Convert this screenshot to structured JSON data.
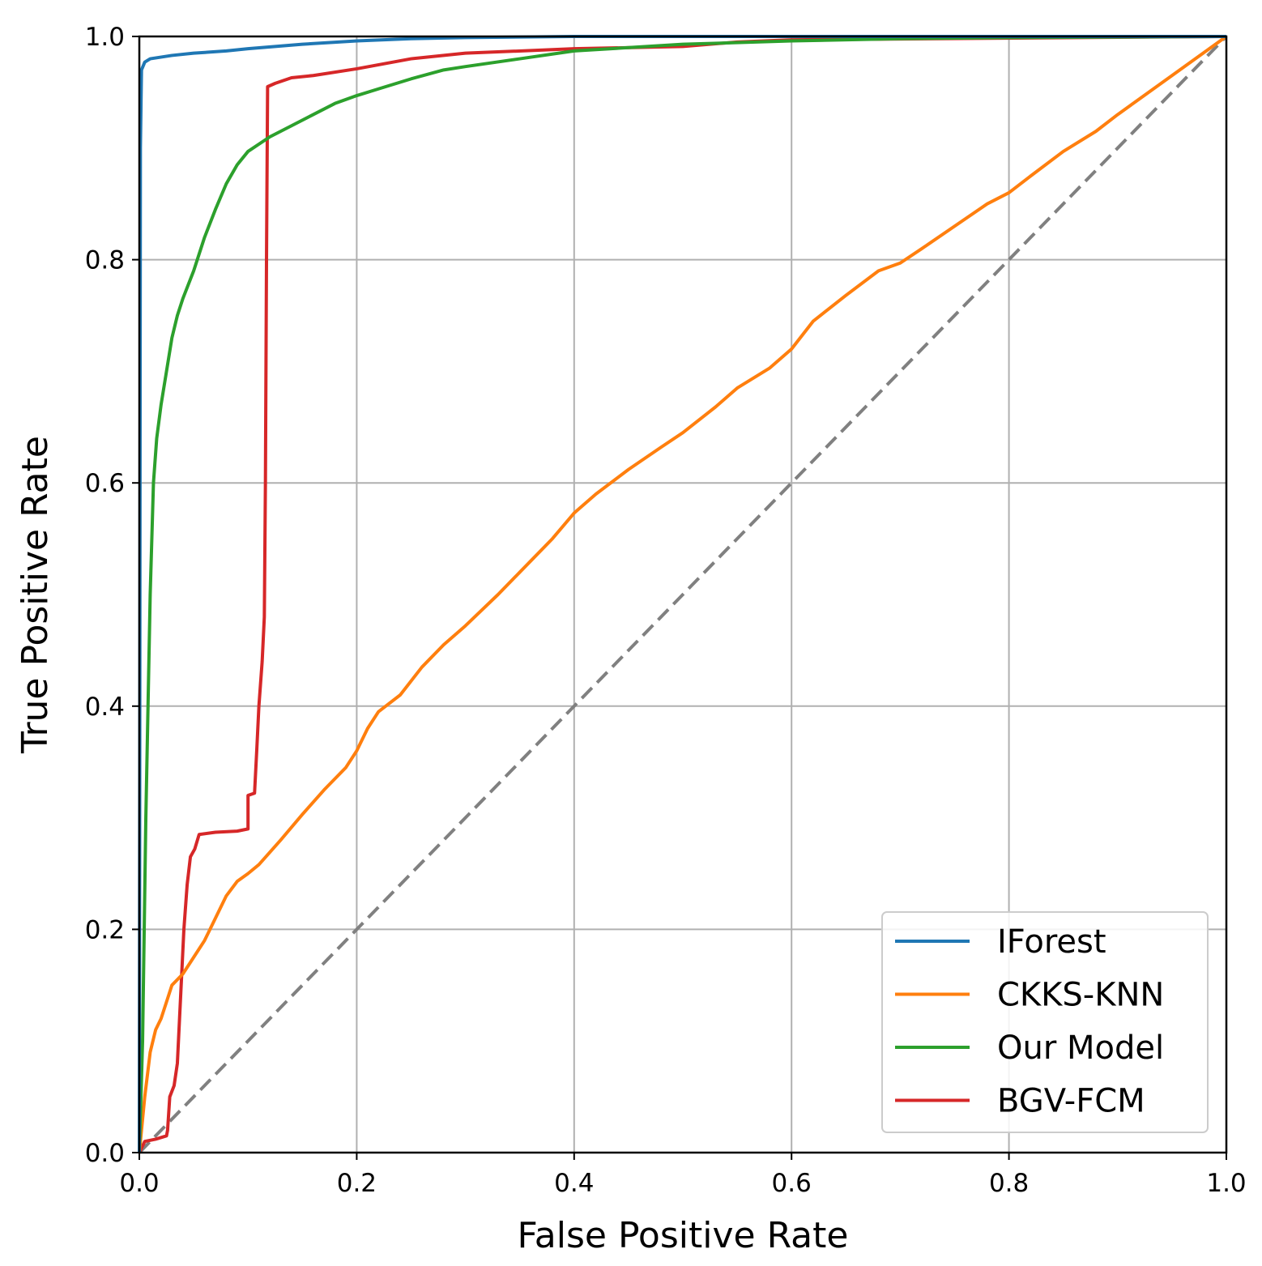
{
  "chart_data": {
    "type": "line",
    "title": "",
    "xlabel": "False Positive Rate",
    "ylabel": "True Positive Rate",
    "xlim": [
      0.0,
      1.0
    ],
    "ylim": [
      0.0,
      1.0
    ],
    "xticks": [
      "0.0",
      "0.2",
      "0.4",
      "0.6",
      "0.8",
      "1.0"
    ],
    "yticks": [
      "0.0",
      "0.2",
      "0.4",
      "0.6",
      "0.8",
      "1.0"
    ],
    "grid": true,
    "legend_position": "lower-right",
    "series": [
      {
        "name": "IForest",
        "color": "#1f77b4",
        "points": [
          [
            0,
            0
          ],
          [
            0.001,
            0.9
          ],
          [
            0.002,
            0.97
          ],
          [
            0.005,
            0.977
          ],
          [
            0.01,
            0.98
          ],
          [
            0.03,
            0.983
          ],
          [
            0.05,
            0.985
          ],
          [
            0.08,
            0.987
          ],
          [
            0.1,
            0.989
          ],
          [
            0.15,
            0.993
          ],
          [
            0.2,
            0.996
          ],
          [
            0.25,
            0.998
          ],
          [
            0.3,
            0.999
          ],
          [
            0.4,
            1.0
          ],
          [
            1.0,
            1.0
          ]
        ]
      },
      {
        "name": "CKKS-KNN",
        "color": "#ff7f0e",
        "points": [
          [
            0,
            0
          ],
          [
            0.005,
            0.05
          ],
          [
            0.01,
            0.09
          ],
          [
            0.015,
            0.11
          ],
          [
            0.02,
            0.12
          ],
          [
            0.025,
            0.135
          ],
          [
            0.03,
            0.15
          ],
          [
            0.04,
            0.16
          ],
          [
            0.05,
            0.175
          ],
          [
            0.06,
            0.19
          ],
          [
            0.07,
            0.21
          ],
          [
            0.08,
            0.23
          ],
          [
            0.09,
            0.243
          ],
          [
            0.1,
            0.25
          ],
          [
            0.11,
            0.258
          ],
          [
            0.13,
            0.28
          ],
          [
            0.15,
            0.303
          ],
          [
            0.17,
            0.325
          ],
          [
            0.19,
            0.345
          ],
          [
            0.2,
            0.36
          ],
          [
            0.21,
            0.38
          ],
          [
            0.22,
            0.395
          ],
          [
            0.24,
            0.41
          ],
          [
            0.26,
            0.435
          ],
          [
            0.28,
            0.455
          ],
          [
            0.3,
            0.472
          ],
          [
            0.33,
            0.5
          ],
          [
            0.35,
            0.52
          ],
          [
            0.38,
            0.55
          ],
          [
            0.4,
            0.573
          ],
          [
            0.42,
            0.59
          ],
          [
            0.45,
            0.612
          ],
          [
            0.48,
            0.632
          ],
          [
            0.5,
            0.645
          ],
          [
            0.53,
            0.668
          ],
          [
            0.55,
            0.685
          ],
          [
            0.58,
            0.703
          ],
          [
            0.6,
            0.72
          ],
          [
            0.62,
            0.745
          ],
          [
            0.65,
            0.768
          ],
          [
            0.68,
            0.79
          ],
          [
            0.7,
            0.797
          ],
          [
            0.72,
            0.81
          ],
          [
            0.75,
            0.83
          ],
          [
            0.78,
            0.85
          ],
          [
            0.8,
            0.86
          ],
          [
            0.82,
            0.875
          ],
          [
            0.85,
            0.897
          ],
          [
            0.88,
            0.915
          ],
          [
            0.9,
            0.93
          ],
          [
            0.95,
            0.965
          ],
          [
            1.0,
            1.0
          ]
        ]
      },
      {
        "name": "Our Model",
        "color": "#2ca02c",
        "points": [
          [
            0,
            0
          ],
          [
            0.003,
            0.1
          ],
          [
            0.006,
            0.3
          ],
          [
            0.01,
            0.5
          ],
          [
            0.013,
            0.6
          ],
          [
            0.016,
            0.64
          ],
          [
            0.02,
            0.67
          ],
          [
            0.025,
            0.7
          ],
          [
            0.03,
            0.73
          ],
          [
            0.035,
            0.75
          ],
          [
            0.04,
            0.765
          ],
          [
            0.05,
            0.79
          ],
          [
            0.06,
            0.82
          ],
          [
            0.07,
            0.845
          ],
          [
            0.08,
            0.868
          ],
          [
            0.09,
            0.885
          ],
          [
            0.1,
            0.897
          ],
          [
            0.12,
            0.91
          ],
          [
            0.14,
            0.92
          ],
          [
            0.16,
            0.93
          ],
          [
            0.18,
            0.94
          ],
          [
            0.2,
            0.947
          ],
          [
            0.22,
            0.953
          ],
          [
            0.25,
            0.962
          ],
          [
            0.28,
            0.97
          ],
          [
            0.3,
            0.973
          ],
          [
            0.35,
            0.98
          ],
          [
            0.4,
            0.987
          ],
          [
            0.45,
            0.99
          ],
          [
            0.5,
            0.993
          ],
          [
            0.6,
            0.996
          ],
          [
            0.7,
            0.998
          ],
          [
            0.8,
            0.999
          ],
          [
            1.0,
            1.0
          ]
        ]
      },
      {
        "name": "BGV-FCM",
        "color": "#d62728",
        "points": [
          [
            0,
            0
          ],
          [
            0.005,
            0.01
          ],
          [
            0.015,
            0.012
          ],
          [
            0.025,
            0.015
          ],
          [
            0.026,
            0.02
          ],
          [
            0.028,
            0.05
          ],
          [
            0.032,
            0.06
          ],
          [
            0.035,
            0.08
          ],
          [
            0.037,
            0.12
          ],
          [
            0.039,
            0.16
          ],
          [
            0.041,
            0.2
          ],
          [
            0.044,
            0.24
          ],
          [
            0.047,
            0.265
          ],
          [
            0.051,
            0.272
          ],
          [
            0.055,
            0.285
          ],
          [
            0.07,
            0.287
          ],
          [
            0.09,
            0.288
          ],
          [
            0.1,
            0.29
          ],
          [
            0.1,
            0.32
          ],
          [
            0.106,
            0.322
          ],
          [
            0.108,
            0.36
          ],
          [
            0.11,
            0.4
          ],
          [
            0.113,
            0.44
          ],
          [
            0.115,
            0.48
          ],
          [
            0.116,
            0.6
          ],
          [
            0.117,
            0.8
          ],
          [
            0.118,
            0.955
          ],
          [
            0.125,
            0.958
          ],
          [
            0.14,
            0.963
          ],
          [
            0.16,
            0.965
          ],
          [
            0.2,
            0.971
          ],
          [
            0.25,
            0.98
          ],
          [
            0.3,
            0.985
          ],
          [
            0.4,
            0.989
          ],
          [
            0.5,
            0.991
          ],
          [
            0.55,
            0.995
          ],
          [
            0.6,
            0.997
          ],
          [
            1.0,
            1.0
          ]
        ]
      },
      {
        "name": "chance",
        "color": "#808080",
        "style": "dashed",
        "points": [
          [
            0,
            0
          ],
          [
            1.0,
            1.0
          ]
        ]
      }
    ]
  }
}
